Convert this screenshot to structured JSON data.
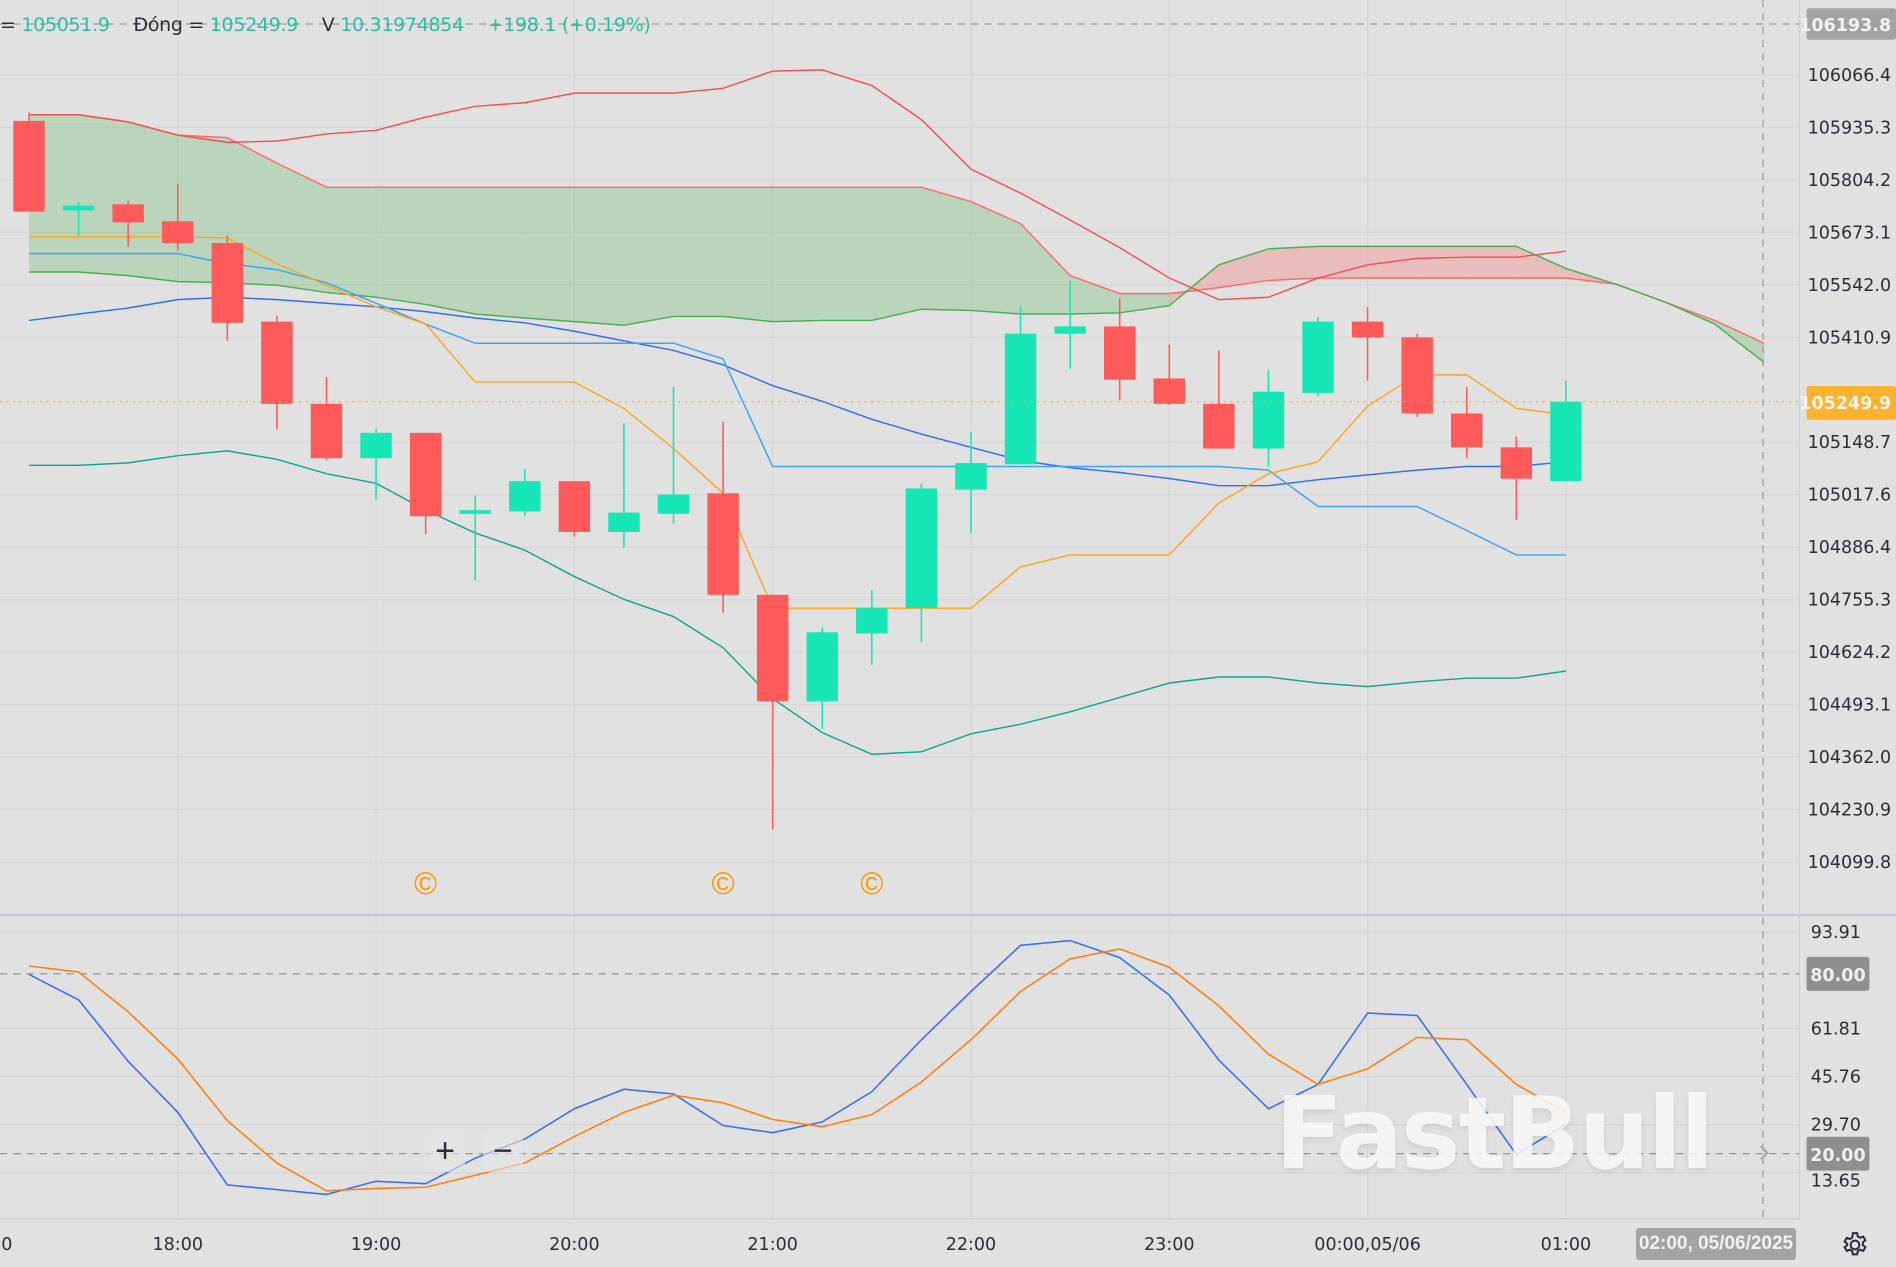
{
  "legend": {
    "open_label": "=",
    "open_value": "105051.9",
    "close_label": "Đóng =",
    "close_value": "105249.9",
    "volume_label": "V",
    "volume_value": "10.31974854",
    "change": "+198.1 (+0.19%)"
  },
  "colors": {
    "up": "#17e6b6",
    "down": "#ff5a5a",
    "ma_upper": "#f05350",
    "ma_lower": "#12a58e",
    "mid": "#2f6ff0",
    "kijun": "#3aa4f5",
    "tenkan": "#ffa41b",
    "cloud_up": "#4caf50",
    "cloud_down": "#ff6b6b",
    "stoch_k": "#3a6ff5",
    "stoch_d": "#ff7f0e",
    "marker": "#ff9800"
  },
  "watermark": "FastBull",
  "crosshair": {
    "price_label": "106193.8",
    "time_label": "02:00, 05/06/2025"
  },
  "zoom_in_icon": "+",
  "zoom_out_icon": "−",
  "scroll_right_icon": "›",
  "chart_data": [
    {
      "type": "candlestick",
      "price_ticks": [
        106066.4,
        105935.3,
        105804.2,
        105673.1,
        105542.0,
        105410.9,
        105148.7,
        105017.6,
        104886.4,
        104755.3,
        104624.2,
        104493.1,
        104362.0,
        104230.9,
        104099.8
      ],
      "last_price": "105249.9",
      "crosshair_price": 106193.8,
      "x_labels": [
        {
          "text": "0",
          "at": "17:00"
        },
        {
          "text": "18:00",
          "at": "18:00"
        },
        {
          "text": "19:00",
          "at": "19:00"
        },
        {
          "text": "20:00",
          "at": "20:00"
        },
        {
          "text": "21:00",
          "at": "21:00"
        },
        {
          "text": "22:00",
          "at": "22:00"
        },
        {
          "text": "23:00",
          "at": "23:00"
        },
        {
          "text": "00:00,05/06",
          "at": "00:00"
        },
        {
          "text": "01:00",
          "at": "01:00"
        }
      ],
      "times": [
        "17:15",
        "17:30",
        "17:45",
        "18:00",
        "18:15",
        "18:30",
        "18:45",
        "19:00",
        "19:15",
        "19:30",
        "19:45",
        "20:00",
        "20:15",
        "20:30",
        "20:45",
        "21:00",
        "21:15",
        "21:30",
        "21:45",
        "22:00",
        "22:15",
        "22:30",
        "22:45",
        "23:00",
        "23:15",
        "23:30",
        "23:45",
        "00:00",
        "00:15",
        "00:30",
        "00:45",
        "01:00",
        "01:15",
        "01:30",
        "01:45",
        "02:00"
      ],
      "ohlc": [
        [
          105951.6,
          105972.7,
          105725.0,
          105725.0
        ],
        [
          105728.0,
          105749.2,
          105664.6,
          105740.1
        ],
        [
          105743.2,
          105752.2,
          105637.4,
          105697.8
        ],
        [
          105700.9,
          105794.5,
          105628.4,
          105646.5
        ],
        [
          105646.5,
          105664.6,
          105401.8,
          105447.1
        ],
        [
          105450.1,
          105465.2,
          105181.2,
          105244.7
        ],
        [
          105244.7,
          105311.1,
          105102.7,
          105108.7
        ],
        [
          105108.7,
          105181.2,
          105006.0,
          105172.2
        ],
        [
          105172.2,
          105172.2,
          104918.4,
          104963.7
        ],
        [
          104969.8,
          105015.1,
          104803.6,
          104978.8
        ],
        [
          104975.8,
          105081.6,
          104963.7,
          105051.3
        ],
        [
          105051.3,
          105051.3,
          104912.4,
          104924.5
        ],
        [
          104924.5,
          105196.3,
          104885.2,
          104972.8
        ],
        [
          104969.8,
          105287.0,
          104945.6,
          105018.1
        ],
        [
          105021.1,
          105199.4,
          104722.1,
          104767.4
        ],
        [
          104767.4,
          104767.4,
          104181.3,
          104501.5
        ],
        [
          104501.5,
          104685.8,
          104432.0,
          104673.7
        ],
        [
          104670.7,
          104779.5,
          104592.1,
          104734.1
        ],
        [
          104734.1,
          105045.3,
          104649.5,
          105033.2
        ],
        [
          105030.2,
          105175.2,
          104921.4,
          105096.7
        ],
        [
          105093.6,
          105486.4,
          105093.6,
          105419.9
        ],
        [
          105419.9,
          105552.8,
          105332.3,
          105438.0
        ],
        [
          105438.0,
          105507.5,
          105253.7,
          105305.1
        ],
        [
          105308.1,
          105392.7,
          105241.7,
          105244.7
        ],
        [
          105244.7,
          105377.6,
          105132.9,
          105132.9
        ],
        [
          105132.9,
          105329.3,
          105087.6,
          105274.9
        ],
        [
          105271.9,
          105462.2,
          105262.8,
          105450.1
        ],
        [
          105450.1,
          105486.4,
          105302.1,
          105410.8
        ],
        [
          105410.8,
          105419.9,
          105211.5,
          105220.5
        ],
        [
          105220.5,
          105287.0,
          105108.7,
          105135.9
        ],
        [
          105135.9,
          105163.1,
          104954.7,
          105057.4
        ],
        [
          105051.9,
          105302.1,
          105054.4,
          105249.9
        ]
      ],
      "lines": [
        {
          "key": "ma_upper",
          "values": [
            105967,
            105967,
            105949,
            105916,
            105898,
            105901,
            105919,
            105928,
            105961,
            105988,
            105997,
            106021,
            106021,
            106021,
            106033,
            106076,
            106079,
            106040,
            105955,
            105831,
            105771,
            105704,
            105635,
            105559,
            105505,
            105511,
            105559,
            105592,
            105608,
            105611,
            105611,
            105626
          ]
        },
        {
          "key": "ma_lower",
          "values": [
            105091,
            105091,
            105097,
            105115,
            105127,
            105106,
            105070,
            105046,
            104979,
            104922,
            104879,
            104813,
            104756,
            104713,
            104635,
            104508,
            104423,
            104369,
            104375,
            104420,
            104444,
            104475,
            104511,
            104547,
            104562,
            104562,
            104547,
            104538,
            104550,
            104559,
            104559,
            104577
          ]
        },
        {
          "key": "mid",
          "values": [
            105453,
            105469,
            105484,
            105505,
            105511,
            105505,
            105496,
            105487,
            105475,
            105459,
            105447,
            105426,
            105402,
            105378,
            105342,
            105290,
            105251,
            105206,
            105169,
            105136,
            105103,
            105085,
            105073,
            105058,
            105040,
            105040,
            105055,
            105067,
            105079,
            105088,
            105088,
            105100
          ]
        },
        {
          "key": "kijun",
          "values": [
            105620,
            105620,
            105620,
            105620,
            105595,
            105580,
            105547,
            105496,
            105444,
            105396,
            105396,
            105396,
            105396,
            105396,
            105357,
            105088,
            105088,
            105088,
            105088,
            105088,
            105088,
            105088,
            105088,
            105088,
            105088,
            105079,
            104988,
            104988,
            104988,
            104928,
            104867,
            104867
          ]
        },
        {
          "key": "tenkan",
          "values": [
            105662,
            105662,
            105662,
            105662,
            105659,
            105595,
            105541,
            105487,
            105444,
            105299,
            105299,
            105299,
            105233,
            105133,
            105021,
            104734,
            104734,
            104734,
            104734,
            104734,
            104837,
            104867,
            104867,
            104867,
            104997,
            105070,
            105100,
            105239,
            105317,
            105317,
            105233,
            105218
          ]
        }
      ],
      "cloud": {
        "span_red": [
          105967,
          105967,
          105949,
          105916,
          105910,
          105846,
          105786,
          105786,
          105786,
          105786,
          105786,
          105786,
          105786,
          105786,
          105786,
          105786,
          105786,
          105786,
          105786,
          105750,
          105695,
          105565,
          105520,
          105520,
          105535,
          105553,
          105559,
          105559,
          105559,
          105559,
          105559,
          105559,
          105544,
          105499,
          105453,
          105396
        ],
        "span_green": [
          105574,
          105574,
          105565,
          105550,
          105547,
          105541,
          105523,
          105511,
          105493,
          105469,
          105459,
          105450,
          105441,
          105463,
          105463,
          105450,
          105453,
          105453,
          105481,
          105478,
          105469,
          105469,
          105472,
          105490,
          105592,
          105632,
          105638,
          105638,
          105638,
          105638,
          105638,
          105583,
          105544,
          105499,
          105444,
          105348
        ]
      },
      "markers": [
        {
          "at": "19:15",
          "glyph": "©"
        },
        {
          "at": "20:45",
          "glyph": "©"
        },
        {
          "at": "21:30",
          "glyph": "©"
        }
      ]
    },
    {
      "type": "line",
      "y_ticks": [
        "93.91",
        "61.81",
        "45.76",
        "29.70",
        "13.65"
      ],
      "levels": [
        "80.00",
        "20.00"
      ],
      "series": [
        {
          "key": "stoch_k",
          "values": [
            79.8,
            71.3,
            50.8,
            33.8,
            9.6,
            8.0,
            6.4,
            10.8,
            10.0,
            18.5,
            24.9,
            35.0,
            41.5,
            39.9,
            29.4,
            27.0,
            30.6,
            40.7,
            58.0,
            74.1,
            89.5,
            91.1,
            85.4,
            72.9,
            51.2,
            35.0,
            43.1,
            66.9,
            66.1,
            43.1,
            19.7,
            29.8
          ]
        },
        {
          "key": "stoch_d",
          "values": [
            82.6,
            80.6,
            67.3,
            51.6,
            31.0,
            16.9,
            7.6,
            8.4,
            8.8,
            12.8,
            16.9,
            25.7,
            33.8,
            39.5,
            37.0,
            31.4,
            29.0,
            33.0,
            43.9,
            58.0,
            74.1,
            85.0,
            88.3,
            82.2,
            69.3,
            53.2,
            43.1,
            48.3,
            58.8,
            58.0,
            43.1,
            33.8
          ]
        }
      ]
    }
  ]
}
